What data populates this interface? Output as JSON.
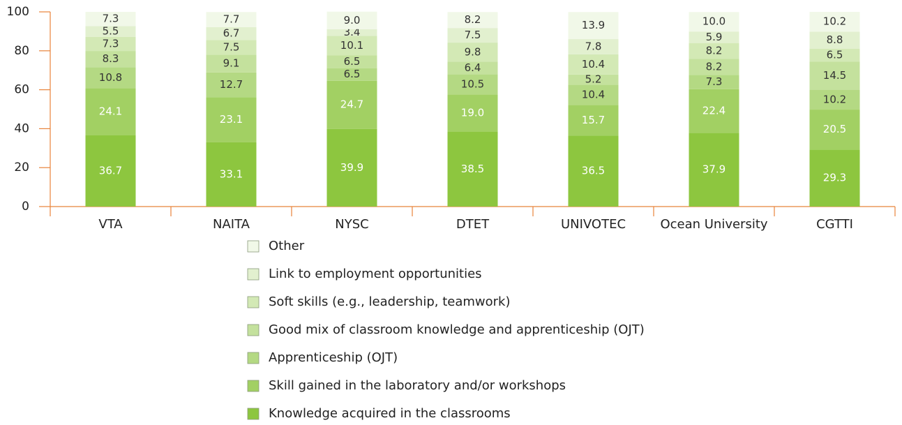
{
  "chart_data": {
    "type": "stacked_bar",
    "categories": [
      "VTA",
      "NAITA",
      "NYSC",
      "DTET",
      "UNIVOTEC",
      "Ocean University",
      "CGTTI"
    ],
    "ylim": [
      0,
      100
    ],
    "yticks": [
      0,
      20,
      40,
      60,
      80,
      100
    ],
    "series": [
      {
        "name": "Knowledge acquired in the classrooms",
        "color": "#8dc63f",
        "label_color": "#ffffff",
        "values": [
          36.7,
          33.1,
          39.9,
          38.5,
          36.5,
          37.9,
          29.3
        ],
        "value_labels": [
          "36.7",
          "33.1",
          "39.9",
          "38.5",
          "36.5",
          "37.9",
          "29.3"
        ]
      },
      {
        "name": "Skill gained in the laboratory and/or workshops",
        "color": "#a2d063",
        "label_color": "#ffffff",
        "values": [
          24.1,
          23.1,
          24.7,
          19.0,
          15.7,
          22.4,
          20.5
        ],
        "value_labels": [
          "24.1",
          "23.1",
          "24.7",
          "19.0",
          "15.7",
          "22.4",
          "20.5"
        ]
      },
      {
        "name": "Apprenticeship (OJT)",
        "color": "#b4d983",
        "label_color": "#333333",
        "values": [
          10.8,
          12.7,
          6.5,
          10.5,
          10.4,
          7.3,
          10.2
        ],
        "value_labels": [
          "10.8",
          "12.7",
          "6.5",
          "10.5",
          "10.4",
          "7.3",
          "10.2"
        ]
      },
      {
        "name": "Good mix of classroom knowledge and apprenticeship (OJT)",
        "color": "#c4e19d",
        "label_color": "#333333",
        "values": [
          8.3,
          9.1,
          6.5,
          6.4,
          5.2,
          8.2,
          14.5
        ],
        "value_labels": [
          "8.3",
          "9.1",
          "6.5",
          "6.4",
          "5.2",
          "8.2",
          "14.5"
        ]
      },
      {
        "name": "Soft skills (e.g., leadership, teamwork)",
        "color": "#d3e9b5",
        "label_color": "#333333",
        "values": [
          7.3,
          7.5,
          10.1,
          9.8,
          10.4,
          8.2,
          6.5
        ],
        "value_labels": [
          "7.3",
          "7.5",
          "10.1",
          "9.8",
          "10.4",
          "8.2",
          "6.5"
        ]
      },
      {
        "name": "Link to employment opportunities",
        "color": "#e2f0cf",
        "label_color": "#333333",
        "values": [
          5.5,
          6.7,
          3.4,
          7.5,
          7.8,
          5.9,
          8.8
        ],
        "value_labels": [
          "5.5",
          "6.7",
          "3.4",
          "7.5",
          "7.8",
          "5.9",
          "8.8"
        ]
      },
      {
        "name": "Other",
        "color": "#f1f8e8",
        "label_color": "#333333",
        "values": [
          7.3,
          7.7,
          9.0,
          8.2,
          13.9,
          10.0,
          10.2
        ],
        "value_labels": [
          "7.3",
          "7.7",
          "9.0",
          "8.2",
          "13.9",
          "10.0",
          "10.2"
        ]
      }
    ],
    "axis_color": "#e8833a"
  }
}
